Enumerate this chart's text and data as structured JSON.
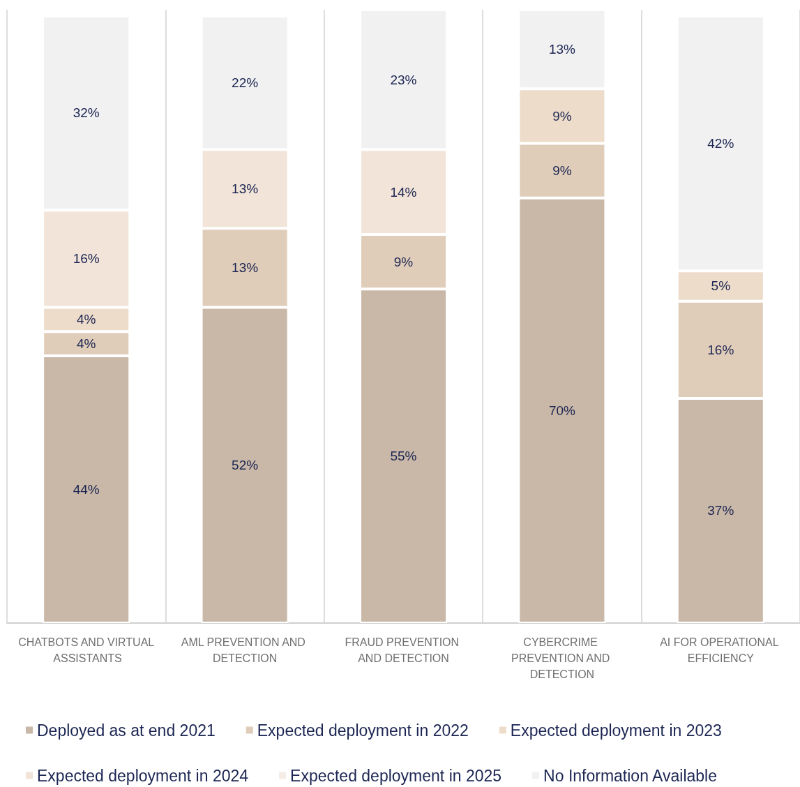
{
  "chart_data": {
    "type": "bar",
    "stacked": true,
    "grid": "x",
    "legend": "bottom",
    "categories": [
      "CHATBOTS AND VIRTUAL ASSISTANTS",
      "AML PREVENTION AND DETECTION",
      "FRAUD PREVENTION AND DETECTION",
      "CYBERCRIME PREVENTION AND DETECTION",
      "AI FOR OPERATIONAL EFFICIENCY"
    ],
    "series": [
      {
        "name": "Deployed as at end 2021",
        "color": "#c9b8a7",
        "values": [
          44,
          52,
          55,
          70,
          37
        ],
        "value_labels": [
          "44%",
          "52%",
          "55%",
          "70%",
          "37%"
        ]
      },
      {
        "name": "Expected deployment in 2022",
        "color": "#e0cdb9",
        "values": [
          4,
          13,
          9,
          9,
          16
        ],
        "value_labels": [
          "4%",
          "13%",
          "9%",
          "9%",
          "16%"
        ]
      },
      {
        "name": "Expected deployment in 2023",
        "color": "#eedcca",
        "values": [
          4,
          null,
          null,
          9,
          5
        ],
        "value_labels": [
          "4%",
          null,
          null,
          "9%",
          "5%"
        ]
      },
      {
        "name": "Expected deployment in 2024",
        "color": "#f2e4d8",
        "values": [
          16,
          13,
          14,
          null,
          null
        ],
        "value_labels": [
          "16%",
          "13%",
          "14%",
          null,
          null
        ]
      },
      {
        "name": "Expected deployment in 2025",
        "color": "#f5ede5",
        "values": [
          null,
          null,
          null,
          null,
          null
        ],
        "value_labels": [
          null,
          null,
          null,
          null,
          null
        ]
      },
      {
        "name": "No Information Available",
        "color": "#f1f1f1",
        "values": [
          32,
          22,
          23,
          13,
          42
        ],
        "value_labels": [
          "32%",
          "22%",
          "23%",
          "13%",
          "42%"
        ]
      }
    ]
  }
}
